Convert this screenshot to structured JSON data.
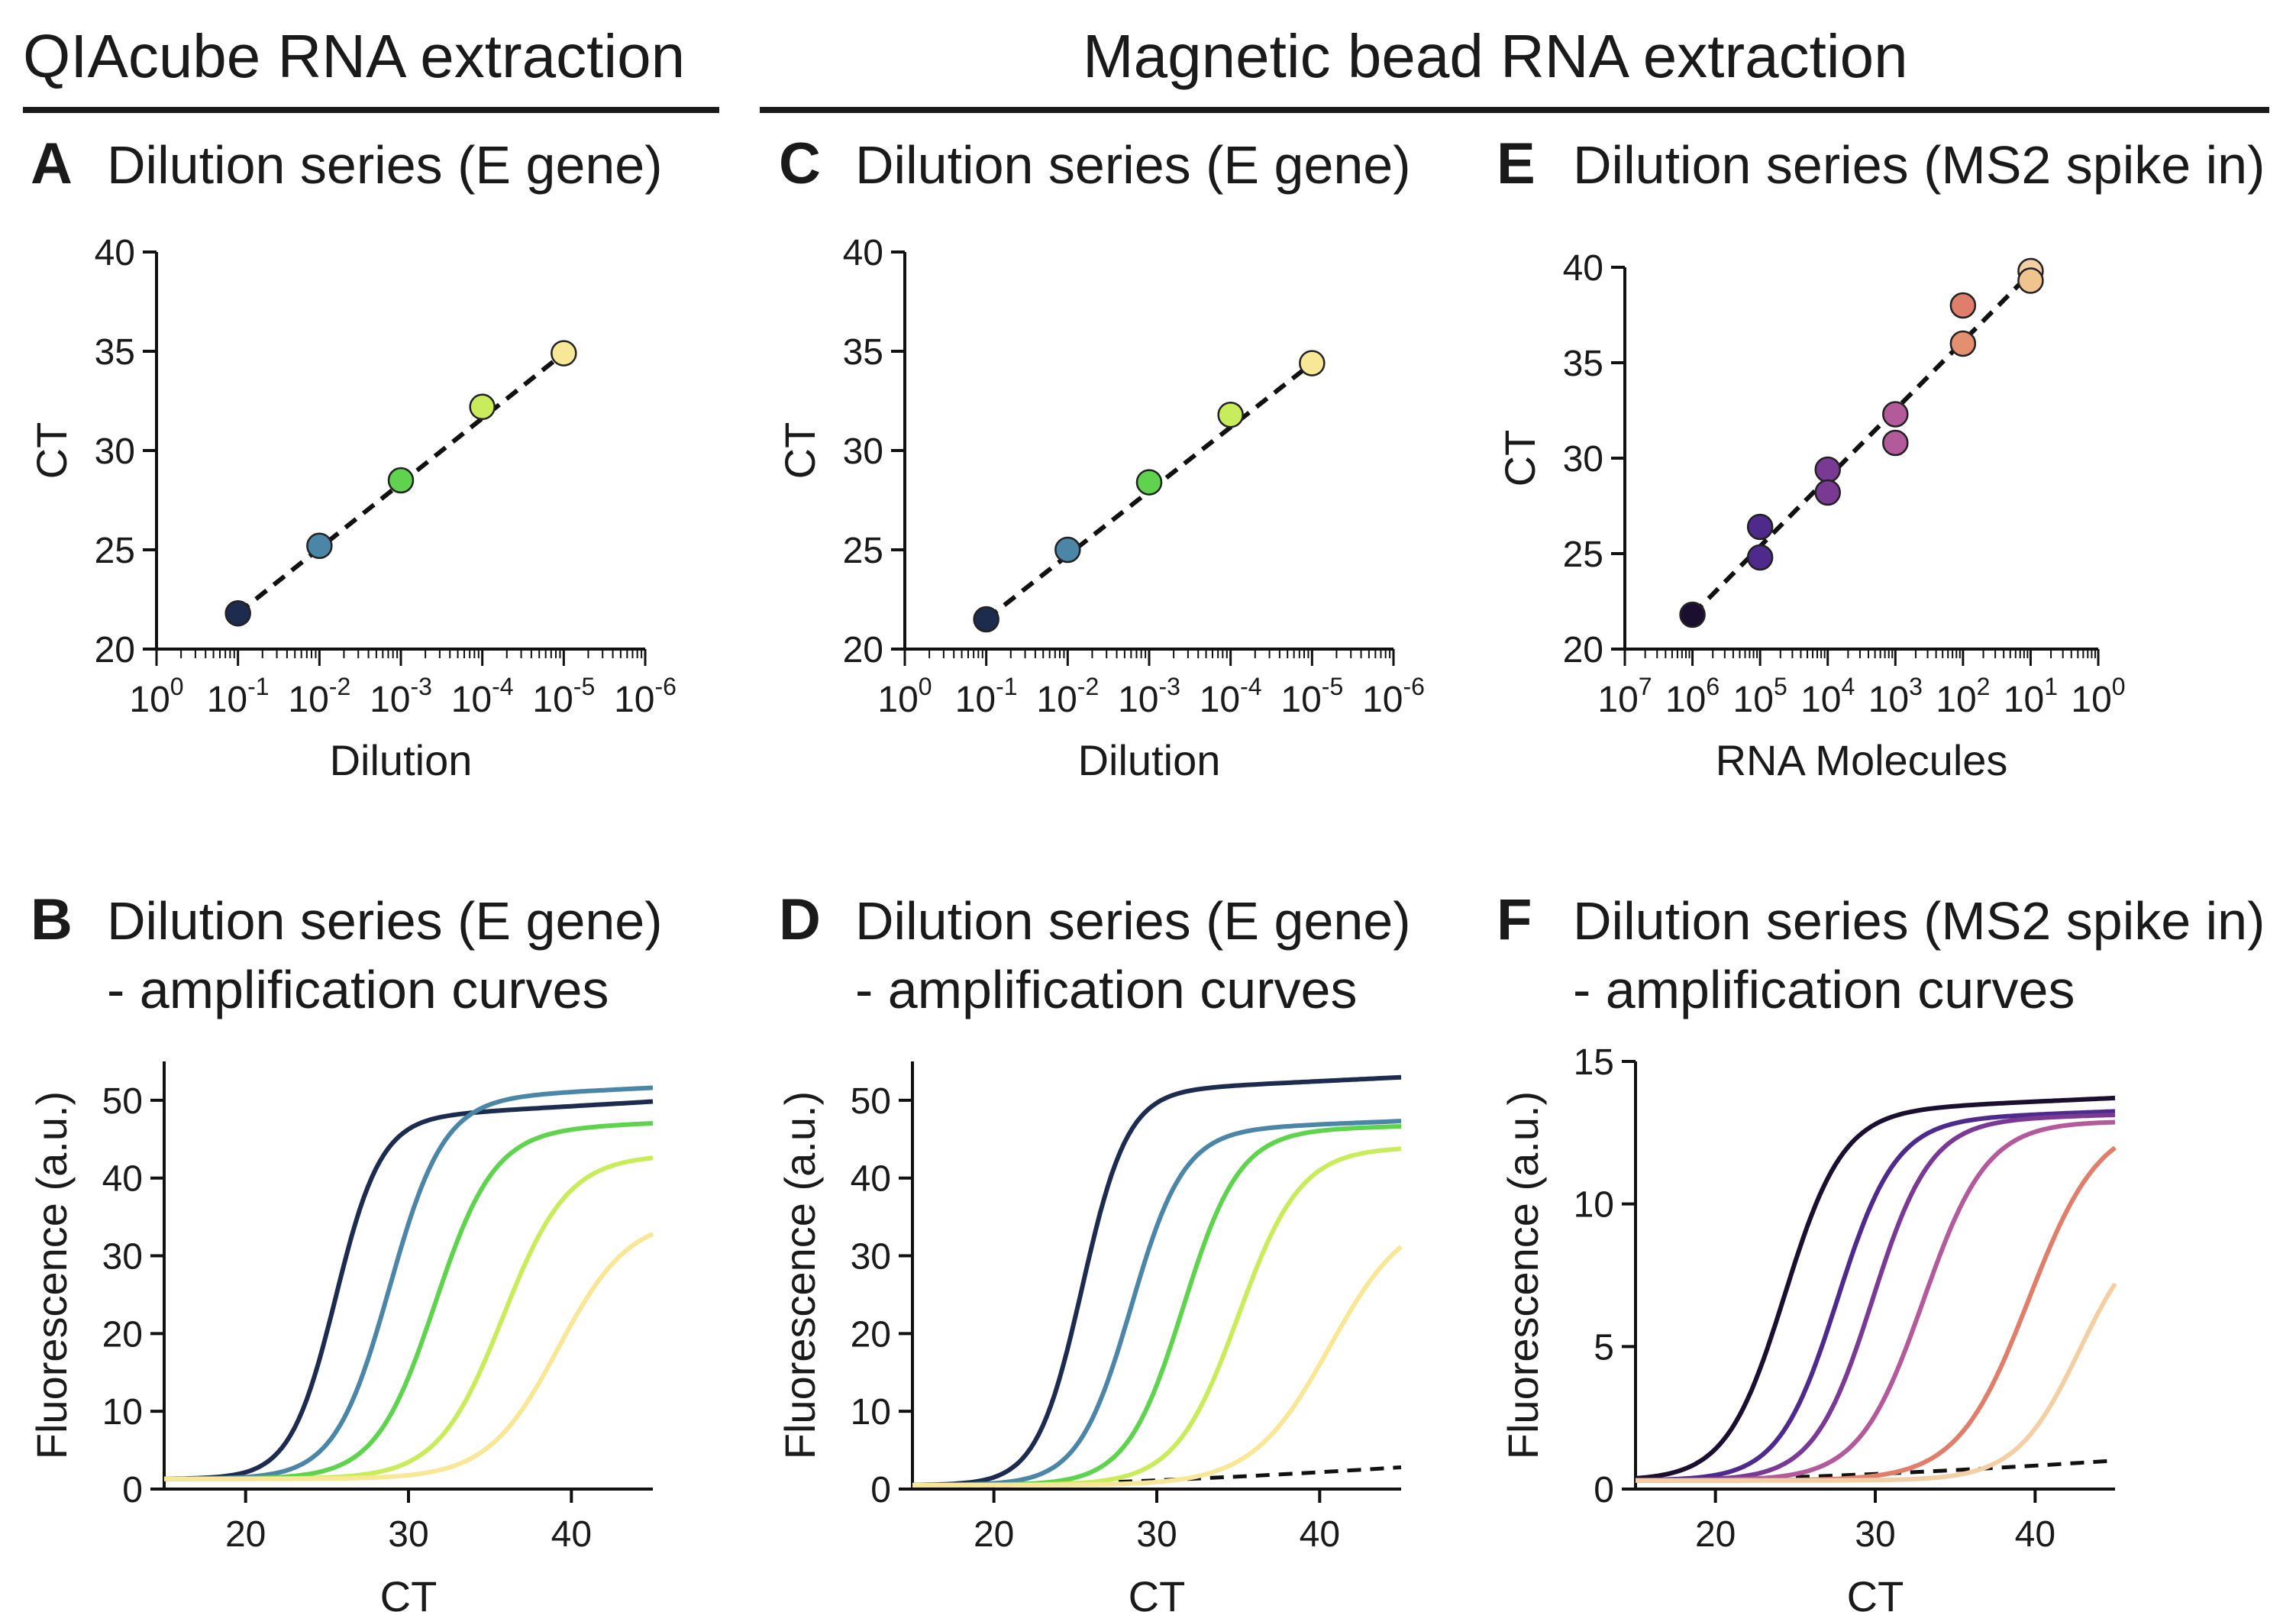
{
  "header": {
    "left_title": "QIAcube RNA extraction",
    "right_title": "Magnetic bead RNA extraction"
  },
  "chart_data": [
    {
      "id": "A",
      "type": "scatter",
      "panel_letter": "A",
      "title_lines": [
        "Dilution series (E gene)"
      ],
      "xlabel": "Dilution",
      "ylabel": "CT",
      "x_scale": "log-reversed",
      "x_ticks_exponent": [
        0,
        -1,
        -2,
        -3,
        -4,
        -5,
        -6
      ],
      "x_tick_base": "10",
      "ylim": [
        20,
        40
      ],
      "y_ticks": [
        "20",
        "25",
        "30",
        "35",
        "40"
      ],
      "points": [
        {
          "x": 0.1,
          "y": 21.8,
          "color": "#1d2b4f"
        },
        {
          "x": 0.01,
          "y": 25.2,
          "color": "#4c86a6"
        },
        {
          "x": 0.001,
          "y": 28.5,
          "color": "#5fd34e"
        },
        {
          "x": 0.0001,
          "y": 32.2,
          "color": "#c9ec5c"
        },
        {
          "x": 1e-05,
          "y": 34.9,
          "color": "#f7e796"
        }
      ],
      "fit_line": {
        "x": [
          0.1,
          1e-05
        ],
        "y": [
          21.8,
          34.9
        ],
        "style": "dashed"
      }
    },
    {
      "id": "C",
      "type": "scatter",
      "panel_letter": "C",
      "title_lines": [
        "Dilution series (E gene)"
      ],
      "xlabel": "Dilution",
      "ylabel": "CT",
      "x_scale": "log-reversed",
      "x_ticks_exponent": [
        0,
        -1,
        -2,
        -3,
        -4,
        -5,
        -6
      ],
      "x_tick_base": "10",
      "ylim": [
        20,
        40
      ],
      "y_ticks": [
        "20",
        "25",
        "30",
        "35",
        "40"
      ],
      "points": [
        {
          "x": 0.1,
          "y": 21.5,
          "color": "#1d2b4f"
        },
        {
          "x": 0.01,
          "y": 25.0,
          "color": "#4c86a6"
        },
        {
          "x": 0.001,
          "y": 28.4,
          "color": "#5fd34e"
        },
        {
          "x": 0.0001,
          "y": 31.8,
          "color": "#c9ec5c"
        },
        {
          "x": 1e-05,
          "y": 34.4,
          "color": "#f7e796"
        }
      ],
      "fit_line": {
        "x": [
          0.1,
          1e-05
        ],
        "y": [
          21.5,
          34.4
        ],
        "style": "dashed"
      }
    },
    {
      "id": "E",
      "type": "scatter",
      "panel_letter": "E",
      "title_lines": [
        "Dilution series (MS2 spike in)"
      ],
      "xlabel": "RNA Molecules",
      "ylabel": "CT",
      "x_scale": "log-reversed",
      "x_ticks_exponent": [
        7,
        6,
        5,
        4,
        3,
        2,
        1,
        0
      ],
      "x_tick_base": "10",
      "ylim": [
        20,
        40
      ],
      "y_ticks": [
        "20",
        "25",
        "30",
        "35",
        "40"
      ],
      "points": [
        {
          "x": 1000000,
          "y": 21.8,
          "color": "#1b0f30"
        },
        {
          "x": 100000,
          "y": 26.4,
          "color": "#4d2a8c"
        },
        {
          "x": 100000,
          "y": 24.8,
          "color": "#4d2a8c"
        },
        {
          "x": 10000,
          "y": 29.4,
          "color": "#7a3a94"
        },
        {
          "x": 10000,
          "y": 28.2,
          "color": "#7a3a94"
        },
        {
          "x": 1000,
          "y": 32.3,
          "color": "#b35a9a"
        },
        {
          "x": 1000,
          "y": 30.8,
          "color": "#b35a9a"
        },
        {
          "x": 100,
          "y": 38.0,
          "color": "#df7e6b"
        },
        {
          "x": 100,
          "y": 36.0,
          "color": "#e38f70"
        },
        {
          "x": 10,
          "y": 39.8,
          "color": "#f3cfa6"
        },
        {
          "x": 10,
          "y": 39.3,
          "color": "#f0c48f"
        }
      ],
      "fit_line": {
        "x": [
          1000000,
          10
        ],
        "y": [
          21.8,
          39.7
        ],
        "style": "dashed"
      }
    },
    {
      "id": "B",
      "type": "line",
      "panel_letter": "B",
      "title_lines": [
        "Dilution series (E gene)",
        "- amplification curves"
      ],
      "xlabel": "CT",
      "ylabel": "Fluorescence (a.u.)",
      "xlim": [
        15,
        45
      ],
      "x_ticks": [
        "20",
        "30",
        "40"
      ],
      "ylim": [
        0,
        55
      ],
      "y_ticks": [
        "0",
        "10",
        "20",
        "30",
        "40",
        "50"
      ],
      "series": [
        {
          "color": "#1d2b4f",
          "mid": 25.5,
          "top": 47.5,
          "base": 1.3,
          "k": 0.72,
          "slope": 0.12
        },
        {
          "color": "#4c86a6",
          "mid": 28.8,
          "top": 50.0,
          "base": 1.3,
          "k": 0.6,
          "slope": 0.1
        },
        {
          "color": "#5fd34e",
          "mid": 31.6,
          "top": 46.0,
          "base": 1.3,
          "k": 0.55,
          "slope": 0.08
        },
        {
          "color": "#c9ec5c",
          "mid": 35.8,
          "top": 43.0,
          "base": 1.3,
          "k": 0.5,
          "slope": 0.0
        },
        {
          "color": "#f7e796",
          "mid": 39.2,
          "top": 35.0,
          "base": 1.3,
          "k": 0.46,
          "slope": 0.0
        }
      ]
    },
    {
      "id": "D",
      "type": "line",
      "panel_letter": "D",
      "title_lines": [
        "Dilution series (E gene)",
        "- amplification curves"
      ],
      "xlabel": "CT",
      "ylabel": "Fluorescence (a.u.)",
      "xlim": [
        15,
        45
      ],
      "x_ticks": [
        "20",
        "30",
        "40"
      ],
      "ylim": [
        0,
        55
      ],
      "y_ticks": [
        "0",
        "10",
        "20",
        "30",
        "40",
        "50"
      ],
      "series": [
        {
          "color": "#1d2b4f",
          "mid": 25.4,
          "top": 51.0,
          "base": 0.5,
          "k": 0.72,
          "slope": 0.1
        },
        {
          "color": "#4c86a6",
          "mid": 28.4,
          "top": 46.0,
          "base": 0.5,
          "k": 0.62,
          "slope": 0.08
        },
        {
          "color": "#5fd34e",
          "mid": 31.6,
          "top": 46.0,
          "base": 0.5,
          "k": 0.58,
          "slope": 0.05
        },
        {
          "color": "#c9ec5c",
          "mid": 35.0,
          "top": 44.0,
          "base": 0.5,
          "k": 0.52,
          "slope": 0.0
        },
        {
          "color": "#f7e796",
          "mid": 40.6,
          "top": 36.0,
          "base": 0.5,
          "k": 0.42,
          "slope": 0.0
        }
      ],
      "negative_control": {
        "style": "dashed",
        "color": "#111111",
        "x": [
          15,
          45
        ],
        "y": [
          0.3,
          2.8
        ]
      }
    },
    {
      "id": "F",
      "type": "line",
      "panel_letter": "F",
      "title_lines": [
        "Dilution series (MS2 spike in)",
        "- amplification curves"
      ],
      "xlabel": "CT",
      "ylabel": "Fluorescence (a.u.)",
      "xlim": [
        15,
        45
      ],
      "x_ticks": [
        "20",
        "30",
        "40"
      ],
      "ylim": [
        0,
        15
      ],
      "y_ticks": [
        "0",
        "5",
        "10",
        "15"
      ],
      "series": [
        {
          "color": "#1b0f30",
          "mid": 24.3,
          "top": 13.2,
          "base": 0.3,
          "k": 0.55,
          "slope": 0.025
        },
        {
          "color": "#4d2a8c",
          "mid": 27.6,
          "top": 12.9,
          "base": 0.3,
          "k": 0.55,
          "slope": 0.02
        },
        {
          "color": "#7a3a94",
          "mid": 29.8,
          "top": 12.9,
          "base": 0.3,
          "k": 0.55,
          "slope": 0.015
        },
        {
          "color": "#b35a9a",
          "mid": 33.0,
          "top": 12.9,
          "base": 0.3,
          "k": 0.5,
          "slope": 0.0
        },
        {
          "color": "#df7e6b",
          "mid": 39.6,
          "top": 13.0,
          "base": 0.3,
          "k": 0.45,
          "slope": 0.0
        },
        {
          "color": "#f3cfa6",
          "mid": 42.8,
          "top": 9.5,
          "base": 0.3,
          "k": 0.5,
          "slope": 0.0
        }
      ],
      "negative_control": {
        "style": "dashed",
        "color": "#111111",
        "x": [
          15,
          45
        ],
        "y": [
          0.3,
          1.0
        ]
      }
    }
  ]
}
